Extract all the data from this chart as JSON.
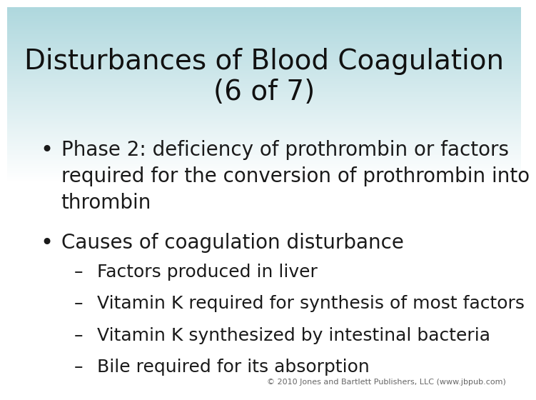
{
  "title_line1": "Disturbances of Blood Coagulation",
  "title_line2": "(6 of 7)",
  "title_fontsize": 28,
  "bullet_fontsize": 20,
  "sub_bullet_fontsize": 18,
  "copyright": "© 2010 Jones and Bartlett Publishers, LLC (www.jbpub.com)",
  "copyright_fontsize": 8,
  "bullets": [
    "Phase 2: deficiency of prothrombin or factors\nrequired for the conversion of prothrombin into\nthrombin",
    "Causes of coagulation disturbance"
  ],
  "sub_bullets": [
    "Factors produced in liver",
    "Vitamin K required for synthesis of most factors",
    "Vitamin K synthesized by intestinal bacteria",
    "Bile required for its absorption"
  ],
  "bg_color_top": "#afd8de",
  "bg_color_bottom": "#ffffff",
  "text_color": "#1a1a1a",
  "title_color": "#111111",
  "gradient_stop": 0.45
}
